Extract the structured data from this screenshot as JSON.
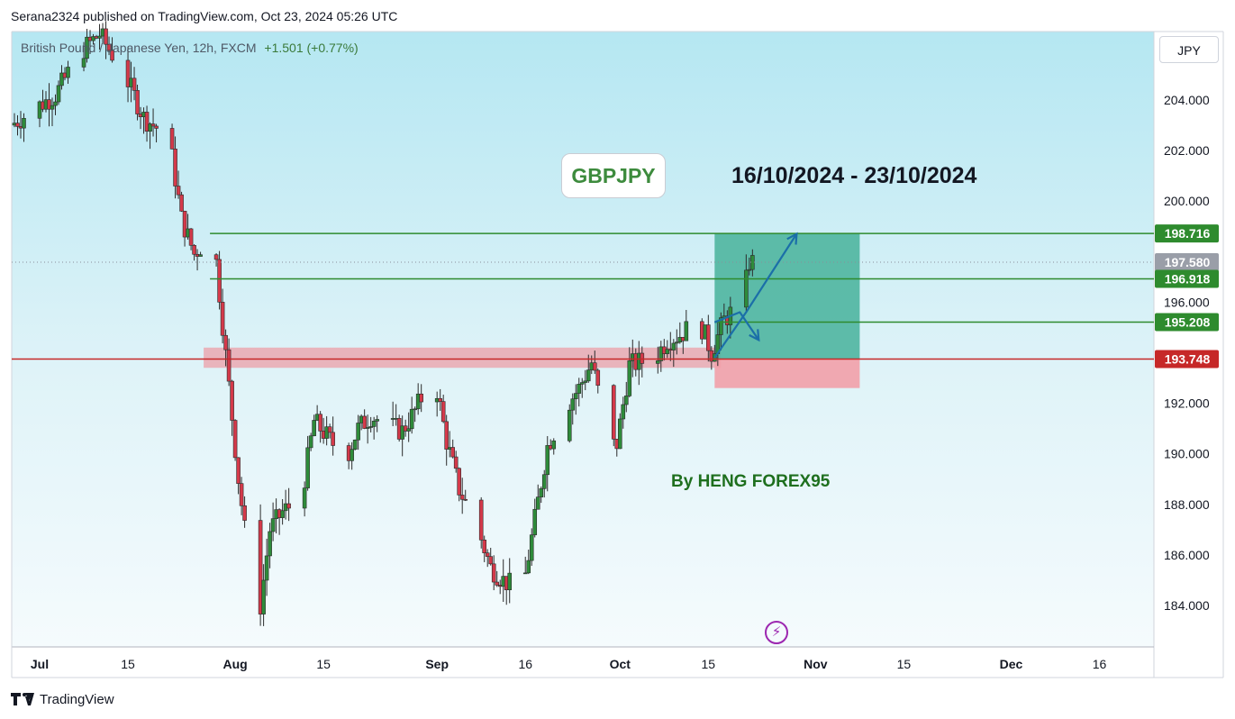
{
  "header": {
    "publish_line": "Serana2324 published on TradingView.com, Oct 23, 2024 05:26 UTC"
  },
  "symbol_info": {
    "name": "British Pound / Japanese Yen, 12h, FXCM",
    "change": "+1.501 (+0.77%)"
  },
  "currency_label": "JPY",
  "annotations": {
    "pair_badge": "GBPJPY",
    "date_range": "16/10/2024 - 23/10/2024",
    "author": "By HENG FOREX95"
  },
  "footer": {
    "brand": "TradingView"
  },
  "icons": {
    "alert": "flash-icon",
    "logo": "tradingview-logo-icon"
  },
  "colors": {
    "background_top": "#b5e7f2",
    "background_bottom": "#f4fbfd",
    "candle_up": "#2e8b3a",
    "candle_down": "#d4394a",
    "level_line": "#2e8b2e",
    "support_line": "#c62828",
    "profit_zone": "#4fb5a0",
    "loss_zone": "#f2a0a8",
    "arrow": "#1b6fa8"
  },
  "chart_data": {
    "type": "candlestick",
    "ylim": [
      182.8,
      207.0
    ],
    "yticks": [
      "204.000",
      "202.000",
      "200.000",
      "196.000",
      "192.000",
      "190.000",
      "188.000",
      "186.000",
      "184.000"
    ],
    "xticks": [
      {
        "label": "Jul",
        "date": "2024-07-01"
      },
      {
        "label": "15",
        "date": "2024-07-15"
      },
      {
        "label": "Aug",
        "date": "2024-08-01"
      },
      {
        "label": "15",
        "date": "2024-08-15"
      },
      {
        "label": "Sep",
        "date": "2024-09-02"
      },
      {
        "label": "16",
        "date": "2024-09-16"
      },
      {
        "label": "Oct",
        "date": "2024-10-01"
      },
      {
        "label": "15",
        "date": "2024-10-15"
      },
      {
        "label": "Nov",
        "date": "2024-11-01"
      },
      {
        "label": "15",
        "date": "2024-11-15"
      },
      {
        "label": "Dec",
        "date": "2024-12-02"
      },
      {
        "label": "16",
        "date": "2024-12-16"
      }
    ],
    "price_levels": [
      {
        "label": "198.716",
        "value": 198.716,
        "kind": "target"
      },
      {
        "label": "197.580",
        "value": 197.58,
        "kind": "last-price"
      },
      {
        "label": "196.918",
        "value": 196.918,
        "kind": "level"
      },
      {
        "label": "195.208",
        "value": 195.208,
        "kind": "level"
      },
      {
        "label": "193.748",
        "value": 193.748,
        "kind": "support"
      }
    ],
    "position": {
      "entry": 193.748,
      "target": 198.716,
      "stop": 192.6,
      "start": "2024-10-16",
      "end": "2024-11-08"
    },
    "support_zone": {
      "top": 194.2,
      "bottom": 193.4,
      "start": "2024-07-27",
      "end": "2024-10-17"
    },
    "projection_arrow": {
      "points": [
        [
          "2024-10-16",
          193.8
        ],
        [
          "2024-10-21",
          195.6
        ],
        [
          "2024-10-29",
          198.7
        ]
      ]
    },
    "projection_arrow_2": {
      "points": [
        [
          "2024-10-16",
          195.2
        ],
        [
          "2024-10-20",
          195.6
        ],
        [
          "2024-10-23",
          194.5
        ]
      ]
    },
    "level_lines_start": "2024-07-28",
    "series_close_weekly": [
      [
        "2024-06-27",
        203.0
      ],
      [
        "2024-07-01",
        203.7
      ],
      [
        "2024-07-04",
        204.2
      ],
      [
        "2024-07-08",
        205.9
      ],
      [
        "2024-07-11",
        206.6
      ],
      [
        "2024-07-15",
        205.0
      ],
      [
        "2024-07-18",
        203.3
      ],
      [
        "2024-07-22",
        202.5
      ],
      [
        "2024-07-24",
        199.3
      ],
      [
        "2024-07-26",
        197.9
      ],
      [
        "2024-07-29",
        198.8
      ],
      [
        "2024-07-31",
        193.9
      ],
      [
        "2024-08-02",
        189.0
      ],
      [
        "2024-08-05",
        183.0
      ],
      [
        "2024-08-07",
        187.0
      ],
      [
        "2024-08-09",
        187.7
      ],
      [
        "2024-08-12",
        188.3
      ],
      [
        "2024-08-14",
        191.3
      ],
      [
        "2024-08-16",
        190.7
      ],
      [
        "2024-08-19",
        189.8
      ],
      [
        "2024-08-21",
        191.0
      ],
      [
        "2024-08-23",
        191.5
      ],
      [
        "2024-08-26",
        191.1
      ],
      [
        "2024-08-28",
        190.9
      ],
      [
        "2024-08-30",
        191.7
      ],
      [
        "2024-09-02",
        193.2
      ],
      [
        "2024-09-04",
        190.5
      ],
      [
        "2024-09-06",
        188.6
      ],
      [
        "2024-09-09",
        187.0
      ],
      [
        "2024-09-11",
        185.5
      ],
      [
        "2024-09-13",
        185.0
      ],
      [
        "2024-09-16",
        184.5
      ],
      [
        "2024-09-18",
        187.4
      ],
      [
        "2024-09-20",
        190.3
      ],
      [
        "2024-09-23",
        191.9
      ],
      [
        "2024-09-25",
        192.6
      ],
      [
        "2024-09-27",
        193.6
      ],
      [
        "2024-09-30",
        190.3
      ],
      [
        "2024-10-01",
        190.4
      ],
      [
        "2024-10-03",
        193.5
      ],
      [
        "2024-10-07",
        193.8
      ],
      [
        "2024-10-09",
        194.5
      ],
      [
        "2024-10-11",
        194.7
      ],
      [
        "2024-10-14",
        195.3
      ],
      [
        "2024-10-16",
        194.0
      ],
      [
        "2024-10-18",
        195.3
      ],
      [
        "2024-10-21",
        196.1
      ],
      [
        "2024-10-22",
        197.58
      ]
    ]
  }
}
